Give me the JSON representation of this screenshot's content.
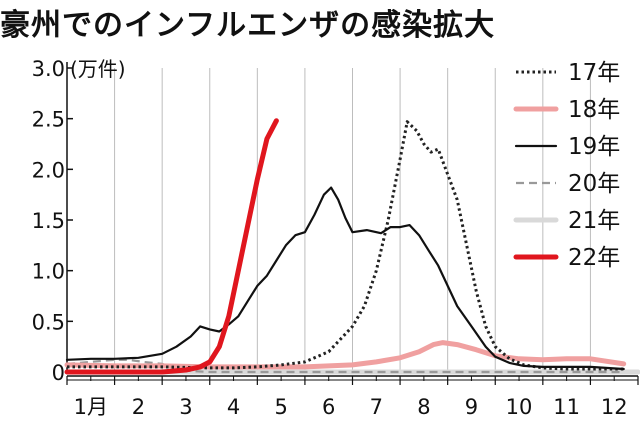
{
  "chart_data": {
    "type": "line",
    "title": "豪州でのインフルエンザの感染拡大",
    "ylabel": "(万件)",
    "x_tick_labels": [
      "1月",
      "2",
      "3",
      "4",
      "5",
      "6",
      "7",
      "8",
      "9",
      "10",
      "11",
      "12"
    ],
    "y_ticks": [
      {
        "value": 0,
        "label": "0"
      },
      {
        "value": 0.5,
        "label": "0.5"
      },
      {
        "value": 1.0,
        "label": "1.0"
      },
      {
        "value": 1.5,
        "label": "1.5"
      },
      {
        "value": 2.0,
        "label": "2.0"
      },
      {
        "value": 2.5,
        "label": "2.5"
      },
      {
        "value": 3.0,
        "label": "3.0"
      }
    ],
    "xlim": [
      1,
      13
    ],
    "ylim": [
      0,
      3.0
    ],
    "grid": "vertical-month-lines",
    "legend_position": "right",
    "series": [
      {
        "name": "17年",
        "color": "#222222",
        "style": "dotted",
        "points": [
          [
            1.0,
            0.05
          ],
          [
            2.0,
            0.05
          ],
          [
            3.0,
            0.05
          ],
          [
            4.0,
            0.04
          ],
          [
            4.5,
            0.04
          ],
          [
            5.0,
            0.05
          ],
          [
            5.5,
            0.07
          ],
          [
            6.0,
            0.1
          ],
          [
            6.5,
            0.2
          ],
          [
            7.0,
            0.45
          ],
          [
            7.25,
            0.65
          ],
          [
            7.5,
            1.0
          ],
          [
            7.75,
            1.5
          ],
          [
            8.0,
            2.1
          ],
          [
            8.15,
            2.47
          ],
          [
            8.35,
            2.38
          ],
          [
            8.5,
            2.25
          ],
          [
            8.65,
            2.17
          ],
          [
            8.8,
            2.2
          ],
          [
            9.0,
            1.95
          ],
          [
            9.2,
            1.7
          ],
          [
            9.4,
            1.25
          ],
          [
            9.6,
            0.8
          ],
          [
            9.8,
            0.45
          ],
          [
            10.0,
            0.25
          ],
          [
            10.3,
            0.13
          ],
          [
            10.6,
            0.07
          ],
          [
            11.0,
            0.04
          ],
          [
            11.5,
            0.03
          ],
          [
            12.0,
            0.03
          ],
          [
            12.7,
            0.03
          ]
        ]
      },
      {
        "name": "18年",
        "color": "#f0a0a0",
        "style": "solid-thick",
        "points": [
          [
            1.0,
            0.07
          ],
          [
            2.0,
            0.06
          ],
          [
            3.0,
            0.06
          ],
          [
            4.0,
            0.05
          ],
          [
            5.0,
            0.05
          ],
          [
            6.0,
            0.05
          ],
          [
            6.5,
            0.06
          ],
          [
            7.0,
            0.07
          ],
          [
            7.5,
            0.1
          ],
          [
            8.0,
            0.14
          ],
          [
            8.4,
            0.2
          ],
          [
            8.7,
            0.27
          ],
          [
            8.9,
            0.29
          ],
          [
            9.2,
            0.27
          ],
          [
            9.6,
            0.22
          ],
          [
            10.0,
            0.16
          ],
          [
            10.5,
            0.13
          ],
          [
            11.0,
            0.12
          ],
          [
            11.5,
            0.13
          ],
          [
            12.0,
            0.13
          ],
          [
            12.7,
            0.08
          ]
        ]
      },
      {
        "name": "19年",
        "color": "#111111",
        "style": "solid",
        "points": [
          [
            1.0,
            0.12
          ],
          [
            1.5,
            0.13
          ],
          [
            2.0,
            0.13
          ],
          [
            2.5,
            0.14
          ],
          [
            3.0,
            0.18
          ],
          [
            3.3,
            0.25
          ],
          [
            3.6,
            0.35
          ],
          [
            3.8,
            0.45
          ],
          [
            4.0,
            0.42
          ],
          [
            4.2,
            0.4
          ],
          [
            4.4,
            0.47
          ],
          [
            4.6,
            0.55
          ],
          [
            4.8,
            0.7
          ],
          [
            5.0,
            0.85
          ],
          [
            5.2,
            0.95
          ],
          [
            5.4,
            1.1
          ],
          [
            5.6,
            1.25
          ],
          [
            5.8,
            1.35
          ],
          [
            6.0,
            1.38
          ],
          [
            6.2,
            1.55
          ],
          [
            6.4,
            1.75
          ],
          [
            6.55,
            1.82
          ],
          [
            6.7,
            1.7
          ],
          [
            6.85,
            1.52
          ],
          [
            7.0,
            1.38
          ],
          [
            7.3,
            1.4
          ],
          [
            7.6,
            1.37
          ],
          [
            7.8,
            1.43
          ],
          [
            8.0,
            1.43
          ],
          [
            8.2,
            1.45
          ],
          [
            8.4,
            1.35
          ],
          [
            8.6,
            1.2
          ],
          [
            8.8,
            1.05
          ],
          [
            9.0,
            0.85
          ],
          [
            9.2,
            0.65
          ],
          [
            9.5,
            0.45
          ],
          [
            9.8,
            0.25
          ],
          [
            10.0,
            0.15
          ],
          [
            10.3,
            0.09
          ],
          [
            10.6,
            0.06
          ],
          [
            11.0,
            0.05
          ],
          [
            12.0,
            0.05
          ],
          [
            12.7,
            0.03
          ]
        ]
      },
      {
        "name": "20年",
        "color": "#999999",
        "style": "dashed",
        "points": [
          [
            1.0,
            0.08
          ],
          [
            1.5,
            0.1
          ],
          [
            2.0,
            0.12
          ],
          [
            2.3,
            0.12
          ],
          [
            2.6,
            0.1
          ],
          [
            3.0,
            0.08
          ],
          [
            3.3,
            0.03
          ],
          [
            3.6,
            0.01
          ],
          [
            4.0,
            0.0
          ],
          [
            5.0,
            0.0
          ],
          [
            6.0,
            0.0
          ],
          [
            7.0,
            0.0
          ],
          [
            8.0,
            0.0
          ],
          [
            9.0,
            0.0
          ],
          [
            10.0,
            0.0
          ],
          [
            11.0,
            0.0
          ],
          [
            12.0,
            0.0
          ],
          [
            12.7,
            0.0
          ]
        ]
      },
      {
        "name": "21年",
        "color": "#d9d9d9",
        "style": "solid-thick",
        "points": [
          [
            1.0,
            0.0
          ],
          [
            13.0,
            0.0
          ]
        ]
      },
      {
        "name": "22年",
        "color": "#e0161e",
        "style": "solid-thick",
        "points": [
          [
            1.0,
            0.0
          ],
          [
            2.0,
            0.0
          ],
          [
            3.0,
            0.0
          ],
          [
            3.5,
            0.02
          ],
          [
            3.8,
            0.05
          ],
          [
            4.0,
            0.1
          ],
          [
            4.2,
            0.25
          ],
          [
            4.4,
            0.55
          ],
          [
            4.6,
            1.0
          ],
          [
            4.8,
            1.45
          ],
          [
            5.0,
            1.9
          ],
          [
            5.2,
            2.3
          ],
          [
            5.4,
            2.48
          ]
        ]
      }
    ]
  }
}
